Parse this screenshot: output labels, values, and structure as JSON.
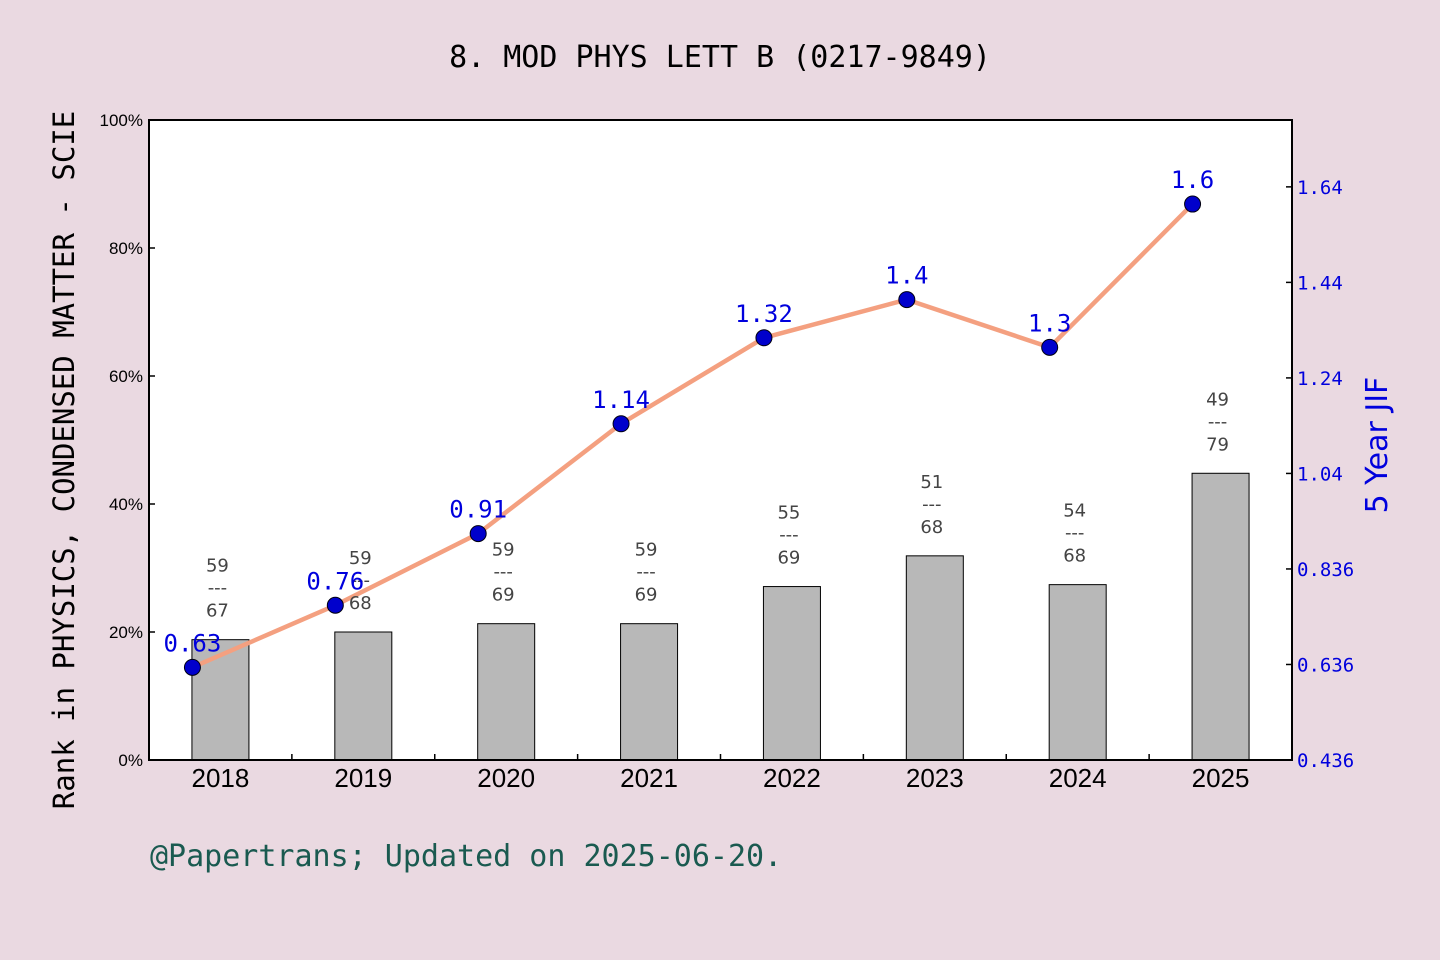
{
  "chart_data": {
    "type": "bar+line",
    "title": "8. MOD PHYS LETT B (0217-9849)",
    "ylabel": "Rank in PHYSICS, CONDENSED MATTER - SCIE",
    "y2label": "5 Year JIF",
    "categories": [
      "2018",
      "2019",
      "2020",
      "2021",
      "2022",
      "2023",
      "2024",
      "2025"
    ],
    "ylim": [
      0,
      100
    ],
    "yticks": [
      "0%",
      "20%",
      "40%",
      "60%",
      "80%",
      "100%"
    ],
    "y2lim": [
      0.436,
      1.776
    ],
    "y2ticks": [
      "0.436",
      "0.636",
      "0.836",
      "1.04",
      "1.24",
      "1.44",
      "1.64"
    ],
    "y2tick_values": [
      0.436,
      0.636,
      0.836,
      1.036,
      1.236,
      1.436,
      1.636
    ],
    "series": [
      {
        "kind": "bar",
        "values": [
          18.8,
          20.0,
          21.3,
          21.3,
          27.1,
          31.9,
          27.4,
          44.8
        ],
        "rank": [
          "59",
          "59",
          "59",
          "59",
          "55",
          "51",
          "54",
          "49"
        ],
        "total": [
          "67",
          "68",
          "69",
          "69",
          "69",
          "68",
          "68",
          "79"
        ],
        "separator": "---"
      },
      {
        "kind": "line",
        "axis": "right",
        "values": [
          0.63,
          0.76,
          0.91,
          1.14,
          1.32,
          1.4,
          1.3,
          1.6
        ],
        "labels": [
          "0.63",
          "0.76",
          "0.91",
          "1.14",
          "1.32",
          "1.4",
          "1.3",
          "1.6"
        ]
      }
    ],
    "colors": {
      "bar": "#b8b8b8",
      "line": "#f4a080",
      "marker": "#0000cc",
      "right_axis": "#0000dd"
    },
    "grid": false,
    "footer": "@Papertrans; Updated on 2025-06-20."
  }
}
